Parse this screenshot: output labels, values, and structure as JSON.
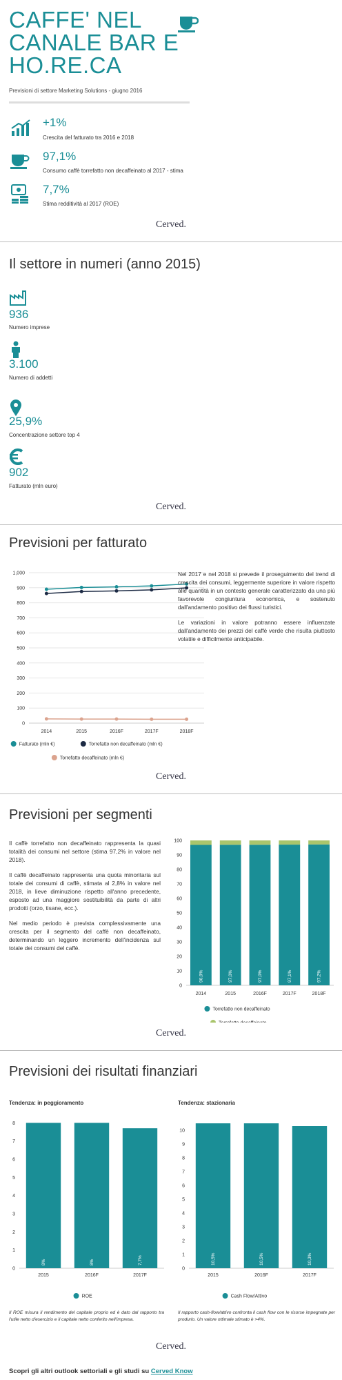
{
  "header": {
    "title": "CAFFE' NEL CANALE BAR E HO.RE.CA",
    "subtitle": "Previsioni di settore Marketing Solutions - giugno 2016"
  },
  "highlights": [
    {
      "value": "+1%",
      "label": "Crescita del fatturato tra 2016 e 2018"
    },
    {
      "value": "97,1%",
      "label": "Consumo caffè torrefatto non decaffeinato al 2017 - stima"
    },
    {
      "value": "7,7%",
      "label": "Stima redditività al 2017 (ROE)"
    }
  ],
  "logo": "Cerved.",
  "numbers": {
    "title": "Il settore in numeri (anno 2015)",
    "items": [
      {
        "value": "936",
        "label": "Numero imprese"
      },
      {
        "value": "3.100",
        "label": "Numero di addetti"
      },
      {
        "value": "25,9%",
        "label": "Concentrazione settore top 4"
      },
      {
        "value": "902",
        "label": "Fatturato (mln euro)"
      }
    ]
  },
  "sections": [
    "Previsioni per fatturato",
    "Previsioni per segmenti",
    "Previsioni dei risultati finanziari"
  ],
  "texts": {
    "fatturato": [
      "Nel 2017 e nel 2018 si prevede il proseguimento del trend di crescita dei consumi, leggermente superiore in valore rispetto alle quantità in un contesto generale caratterizzato da una più favorevole congiuntura economica, e sostenuto dall'andamento positivo dei flussi turistici.",
      "Le variazioni in valore potranno essere influenzate dall'andamento dei prezzi del caffè verde che risulta piuttosto volatile e difficilmente anticipabile."
    ],
    "segmenti": [
      "Il caffè torrefatto non decaffeinato rappresenta la quasi totalità dei consumi nel settore (stima 97,2% in valore nel 2018).",
      "Il caffè decaffeinato rappresenta una quota minoritaria sul totale dei consumi di caffè, stimata al 2,8% in valore nel 2018, in lieve diminuzione rispetto all'anno precedente, esposto ad una maggiore sostituibilità da parte di altri prodotti (orzo, tisane, ecc.).",
      "Nel medio periodo è prevista complessivamente una crescita per il segmento del caffè non decaffeinato, determinando un leggero incremento dell'incidenza sul totale dei consumi del caffè."
    ]
  },
  "chart_data": [
    {
      "type": "line",
      "categories": [
        "2014",
        "2015",
        "2016F",
        "2017F",
        "2018F"
      ],
      "series": [
        {
          "name": "Fatturato (mln €)",
          "color": "#1a8e96",
          "values": [
            890,
            902,
            906,
            912,
            925
          ]
        },
        {
          "name": "Torrefatto non decaffeinato (mln €)",
          "color": "#1c2a44",
          "values": [
            862,
            875,
            879,
            886,
            899
          ]
        },
        {
          "name": "Torrefatto decaffeinato (mln €)",
          "color": "#dba38e",
          "values": [
            28,
            27,
            27,
            26,
            26
          ]
        }
      ],
      "ylim": [
        0,
        1000
      ],
      "yticks": [
        0,
        100,
        200,
        300,
        400,
        500,
        600,
        700,
        800,
        900,
        {
          "value": 1000,
          "label": "1,000"
        }
      ],
      "grid": true
    },
    {
      "type": "bar",
      "stacked": true,
      "categories": [
        "2014",
        "2015",
        "2016F",
        "2017F",
        "2018F"
      ],
      "series": [
        {
          "name": "Torrefatto non decaffeinato",
          "color": "#1a8e96",
          "values": [
            96.9,
            97.0,
            97.0,
            97.1,
            97.2
          ],
          "value_labels": [
            "96,9%",
            "97,0%",
            "97,0%",
            "97,1%",
            "97,2%"
          ]
        },
        {
          "name": "Torrefatto decaffeinato",
          "color": "#a9c56c",
          "values": [
            3.1,
            3.0,
            3.0,
            2.9,
            2.8
          ]
        }
      ],
      "ylim": [
        0,
        100
      ],
      "yticks": [
        0,
        10,
        20,
        30,
        40,
        50,
        60,
        70,
        80,
        90,
        100
      ],
      "grid": false
    },
    {
      "type": "bar",
      "subtitle": "Tendenza: in peggioramento",
      "categories": [
        "2015",
        "2016F",
        "2017F"
      ],
      "series": [
        {
          "name": "ROE",
          "color": "#1a8e96",
          "values": [
            8,
            8,
            7.7
          ],
          "value_labels": [
            "8%",
            "8%",
            "7,7%"
          ]
        }
      ],
      "ylim": [
        0,
        8.2
      ],
      "yticks": [
        0,
        1,
        2,
        3,
        4,
        5,
        6,
        7,
        8
      ],
      "grid": false,
      "note": "Il ROE misura il rendimento del capitale proprio ed è dato dal rapporto tra l'utile netto d'esercizio e il capitale netto conferito nell'impresa."
    },
    {
      "type": "bar",
      "subtitle": "Tendenza: stazionaria",
      "categories": [
        "2015",
        "2016F",
        "2017F"
      ],
      "series": [
        {
          "name": "Cash Flow/Attivo",
          "color": "#1a8e96",
          "values": [
            10.5,
            10.5,
            10.3
          ],
          "value_labels": [
            "10,5%",
            "10,5%",
            "10,3%"
          ]
        }
      ],
      "ylim": [
        0,
        10.8
      ],
      "yticks": [
        0,
        1,
        2,
        3,
        4,
        5,
        6,
        7,
        8,
        9,
        10
      ],
      "grid": false,
      "note": "Il rapporto cash-flow/attivo confronta il cash flow con le risorse impegnate per produrlo. Un valore ottimale stimato è >4%."
    }
  ],
  "footer": {
    "text": "Scopri gli altri outlook settoriali e gli studi su",
    "link": "Cerved Know"
  }
}
